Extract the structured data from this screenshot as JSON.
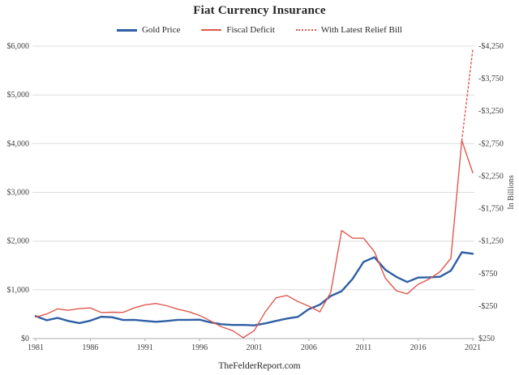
{
  "footer": "TheFelderReport.com",
  "chart_data": {
    "type": "line",
    "title": "Fiat Currency Insurance",
    "x": [
      1981,
      1982,
      1983,
      1984,
      1985,
      1986,
      1987,
      1988,
      1989,
      1990,
      1991,
      1992,
      1993,
      1994,
      1995,
      1996,
      1997,
      1998,
      1999,
      2000,
      2001,
      2002,
      2003,
      2004,
      2005,
      2006,
      2007,
      2008,
      2009,
      2010,
      2011,
      2012,
      2013,
      2014,
      2015,
      2016,
      2017,
      2018,
      2019,
      2020,
      2021
    ],
    "series": [
      {
        "name": "Gold Price",
        "slug": "gold-price-line",
        "axis": "left",
        "color": "#2e5fa4",
        "style": "solid",
        "width": 2.4,
        "legend_weight": 3,
        "values": [
          460,
          376,
          424,
          361,
          317,
          368,
          447,
          437,
          381,
          384,
          362,
          344,
          360,
          384,
          384,
          388,
          331,
          294,
          279,
          279,
          271,
          310,
          363,
          410,
          445,
          604,
          695,
          872,
          972,
          1225,
          1572,
          1669,
          1411,
          1266,
          1160,
          1251,
          1257,
          1268,
          1393,
          1770,
          1740
        ]
      },
      {
        "name": "Fiscal Deficit",
        "slug": "fiscal-deficit-line",
        "axis": "right",
        "color": "#e0584f",
        "style": "solid",
        "width": 1.4,
        "legend_weight": 2,
        "values": [
          -79,
          -128,
          -208,
          -185,
          -212,
          -221,
          -150,
          -155,
          -153,
          -221,
          -269,
          -290,
          -255,
          -203,
          -164,
          -107,
          -22,
          69,
          126,
          236,
          128,
          -158,
          -378,
          -413,
          -318,
          -248,
          -161,
          -459,
          -1413,
          -1294,
          -1295,
          -1087,
          -679,
          -485,
          -438,
          -585,
          -665,
          -779,
          -984,
          -2800,
          -2300
        ]
      },
      {
        "name": "With Latest Relief Bill",
        "slug": "relief-bill-line",
        "axis": "right",
        "color": "#e0584f",
        "style": "dotted",
        "width": 1.4,
        "legend_weight": 2,
        "values": [
          null,
          null,
          null,
          null,
          null,
          null,
          null,
          null,
          null,
          null,
          null,
          null,
          null,
          null,
          null,
          null,
          null,
          null,
          null,
          null,
          null,
          null,
          null,
          null,
          null,
          null,
          null,
          null,
          null,
          null,
          null,
          null,
          null,
          null,
          null,
          null,
          null,
          null,
          null,
          -2800,
          -4200
        ]
      }
    ],
    "left_axis": {
      "min": 0,
      "max": 6000,
      "ticks": [
        {
          "value": 0,
          "label": "$0"
        },
        {
          "value": 1000,
          "label": "$1,000"
        },
        {
          "value": 2000,
          "label": "$2,000"
        },
        {
          "value": 3000,
          "label": "$3,000"
        },
        {
          "value": 4000,
          "label": "$4,000"
        },
        {
          "value": 5000,
          "label": "$5,000"
        },
        {
          "value": 6000,
          "label": "$6,000"
        }
      ]
    },
    "right_axis": {
      "bottom_value": 250,
      "top_value": -4250,
      "title": "In Billions",
      "ticks": [
        {
          "value": -4250,
          "label": "-$4,250"
        },
        {
          "value": -3750,
          "label": "-$3,750"
        },
        {
          "value": -3250,
          "label": "-$3,250"
        },
        {
          "value": -2750,
          "label": "-$2,750"
        },
        {
          "value": -2250,
          "label": "-$2,250"
        },
        {
          "value": -1750,
          "label": "-$1,750"
        },
        {
          "value": -1250,
          "label": "-$1,250"
        },
        {
          "value": -750,
          "label": "-$750"
        },
        {
          "value": -250,
          "label": "-$250"
        },
        {
          "value": 250,
          "label": "$250"
        }
      ]
    },
    "x_axis": {
      "ticks": [
        {
          "value": 1981,
          "label": "1981"
        },
        {
          "value": 1986,
          "label": "1986"
        },
        {
          "value": 1991,
          "label": "1991"
        },
        {
          "value": 1996,
          "label": "1996"
        },
        {
          "value": 2001,
          "label": "2001"
        },
        {
          "value": 2006,
          "label": "2006"
        },
        {
          "value": 2011,
          "label": "2011"
        },
        {
          "value": 2016,
          "label": "2016"
        },
        {
          "value": 2021,
          "label": "2021"
        }
      ]
    }
  }
}
